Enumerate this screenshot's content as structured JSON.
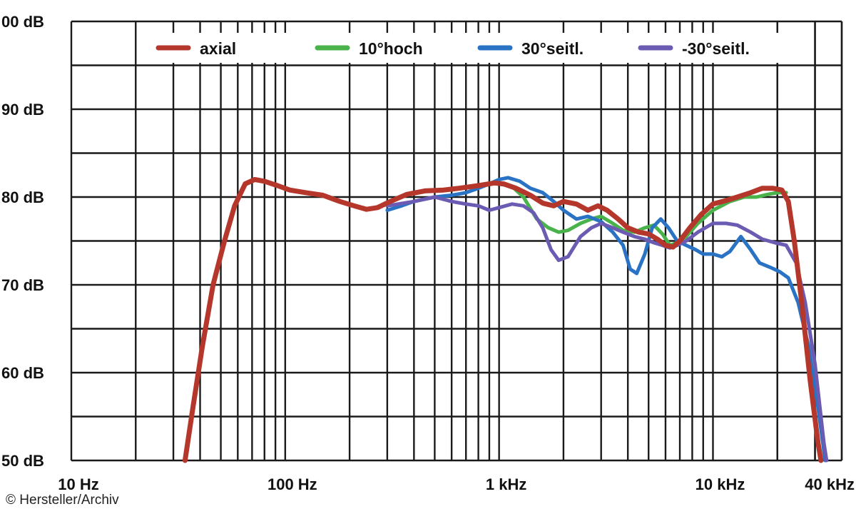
{
  "colors": {
    "axial": "#b5372c",
    "hoch": "#49b24a",
    "seitl": "#2a73c4",
    "minus_seitl": "#6b5bb3",
    "grid": "#1a1a1a"
  },
  "credit": "© Hersteller/Archiv",
  "chart_data": {
    "type": "line",
    "x_scale": "log",
    "xlim": [
      10,
      40000
    ],
    "ylim": [
      50,
      100
    ],
    "grid": true,
    "legend_position": "top",
    "x_ticks": [
      {
        "value": 10,
        "label": "10 Hz"
      },
      {
        "value": 100,
        "label": "100 Hz"
      },
      {
        "value": 1000,
        "label": "1 kHz"
      },
      {
        "value": 10000,
        "label": "10 kHz"
      },
      {
        "value": 40000,
        "label": "40 kHz"
      }
    ],
    "y_ticks": [
      {
        "value": 100,
        "label": "00 dB"
      },
      {
        "value": 90,
        "label": "90 dB"
      },
      {
        "value": 80,
        "label": "80 dB"
      },
      {
        "value": 70,
        "label": "70 dB"
      },
      {
        "value": 60,
        "label": "60 dB"
      },
      {
        "value": 50,
        "label": "50 dB"
      }
    ],
    "series": [
      {
        "name": "10°hoch",
        "color_key": "hoch",
        "points": [
          [
            1000,
            81.5
          ],
          [
            1150,
            81.2
          ],
          [
            1300,
            80
          ],
          [
            1500,
            77.5
          ],
          [
            1700,
            76.5
          ],
          [
            1900,
            76
          ],
          [
            2100,
            76.2
          ],
          [
            2400,
            77
          ],
          [
            2700,
            77.5
          ],
          [
            3000,
            77.8
          ],
          [
            3400,
            77
          ],
          [
            3800,
            76.2
          ],
          [
            4300,
            76
          ],
          [
            4800,
            76.5
          ],
          [
            5300,
            76.8
          ],
          [
            5800,
            75.8
          ],
          [
            6300,
            74.5
          ],
          [
            6800,
            74.8
          ],
          [
            7500,
            75.5
          ],
          [
            8500,
            77
          ],
          [
            10000,
            78.5
          ],
          [
            12000,
            79.5
          ],
          [
            14000,
            80
          ],
          [
            16000,
            80
          ],
          [
            18000,
            80.3
          ],
          [
            20000,
            80.5
          ],
          [
            22000,
            80.5
          ]
        ]
      },
      {
        "name": "30°seitl.",
        "color_key": "seitl",
        "points": [
          [
            300,
            78.5
          ],
          [
            350,
            79
          ],
          [
            400,
            79.5
          ],
          [
            500,
            80
          ],
          [
            600,
            80.2
          ],
          [
            700,
            80.5
          ],
          [
            800,
            81
          ],
          [
            900,
            81.5
          ],
          [
            1000,
            82
          ],
          [
            1100,
            82.2
          ],
          [
            1250,
            81.8
          ],
          [
            1400,
            81
          ],
          [
            1600,
            80.5
          ],
          [
            1800,
            79.5
          ],
          [
            2000,
            78.5
          ],
          [
            2300,
            77.5
          ],
          [
            2600,
            77.8
          ],
          [
            3000,
            77.2
          ],
          [
            3400,
            76
          ],
          [
            3800,
            74.5
          ],
          [
            4100,
            71.8
          ],
          [
            4400,
            71.3
          ],
          [
            4800,
            73.5
          ],
          [
            5200,
            76.5
          ],
          [
            5700,
            77.5
          ],
          [
            6200,
            76.5
          ],
          [
            6800,
            75
          ],
          [
            7500,
            74.5
          ],
          [
            8300,
            74
          ],
          [
            9000,
            73.5
          ],
          [
            10000,
            73.5
          ],
          [
            11000,
            73.2
          ],
          [
            12000,
            73.8
          ],
          [
            13500,
            75.5
          ],
          [
            15000,
            74
          ],
          [
            16500,
            72.5
          ],
          [
            18500,
            72
          ],
          [
            20500,
            71.5
          ],
          [
            22500,
            70.8
          ],
          [
            25000,
            68
          ],
          [
            28000,
            63
          ],
          [
            31000,
            56
          ],
          [
            33500,
            50
          ]
        ]
      },
      {
        "name": "-30°seitl.",
        "color_key": "minus_seitl",
        "points": [
          [
            300,
            79
          ],
          [
            400,
            79.5
          ],
          [
            500,
            80
          ],
          [
            600,
            79.5
          ],
          [
            700,
            79.2
          ],
          [
            800,
            79
          ],
          [
            900,
            78.5
          ],
          [
            1000,
            78.8
          ],
          [
            1150,
            79.2
          ],
          [
            1300,
            79
          ],
          [
            1450,
            78.2
          ],
          [
            1600,
            76.5
          ],
          [
            1750,
            74
          ],
          [
            1900,
            72.8
          ],
          [
            2100,
            73.2
          ],
          [
            2400,
            75.5
          ],
          [
            2700,
            76.5
          ],
          [
            3000,
            77
          ],
          [
            3400,
            76.5
          ],
          [
            3800,
            76
          ],
          [
            4300,
            75.5
          ],
          [
            4800,
            75.2
          ],
          [
            5300,
            74.8
          ],
          [
            5800,
            74.5
          ],
          [
            6300,
            74.2
          ],
          [
            6800,
            74.5
          ],
          [
            7500,
            75
          ],
          [
            8500,
            76
          ],
          [
            10000,
            77
          ],
          [
            11500,
            77
          ],
          [
            13000,
            76.8
          ],
          [
            15000,
            76
          ],
          [
            17000,
            75.2
          ],
          [
            19500,
            74.8
          ],
          [
            22000,
            74.5
          ],
          [
            24500,
            72.5
          ],
          [
            27000,
            68
          ],
          [
            30000,
            61
          ],
          [
            33000,
            52
          ],
          [
            34000,
            50
          ]
        ]
      },
      {
        "name": "axial",
        "color_key": "axial",
        "points": [
          [
            34,
            50
          ],
          [
            37,
            56
          ],
          [
            41,
            63
          ],
          [
            46,
            70
          ],
          [
            52,
            75
          ],
          [
            58,
            79
          ],
          [
            65,
            81.5
          ],
          [
            72,
            82
          ],
          [
            80,
            81.8
          ],
          [
            92,
            81.3
          ],
          [
            105,
            80.8
          ],
          [
            125,
            80.5
          ],
          [
            150,
            80.2
          ],
          [
            180,
            79.5
          ],
          [
            210,
            79
          ],
          [
            240,
            78.6
          ],
          [
            270,
            78.8
          ],
          [
            310,
            79.5
          ],
          [
            370,
            80.3
          ],
          [
            450,
            80.7
          ],
          [
            550,
            80.8
          ],
          [
            650,
            81
          ],
          [
            800,
            81.3
          ],
          [
            950,
            81.6
          ],
          [
            1050,
            81.5
          ],
          [
            1200,
            81
          ],
          [
            1400,
            80.2
          ],
          [
            1600,
            79.3
          ],
          [
            1800,
            79
          ],
          [
            2000,
            79.5
          ],
          [
            2300,
            79.2
          ],
          [
            2600,
            78.5
          ],
          [
            2900,
            79
          ],
          [
            3200,
            78.5
          ],
          [
            3600,
            77.5
          ],
          [
            4000,
            76.5
          ],
          [
            4500,
            76
          ],
          [
            5000,
            75.8
          ],
          [
            5500,
            75.2
          ],
          [
            6000,
            74.5
          ],
          [
            6500,
            74.3
          ],
          [
            7000,
            75
          ],
          [
            7800,
            76.5
          ],
          [
            8800,
            78
          ],
          [
            10000,
            79.2
          ],
          [
            11500,
            79.6
          ],
          [
            13000,
            80
          ],
          [
            15000,
            80.5
          ],
          [
            17000,
            81
          ],
          [
            19000,
            81
          ],
          [
            21000,
            80.8
          ],
          [
            22500,
            79.5
          ],
          [
            24000,
            75
          ],
          [
            26000,
            68
          ],
          [
            28500,
            59
          ],
          [
            31000,
            52
          ],
          [
            32000,
            50
          ]
        ]
      }
    ]
  }
}
